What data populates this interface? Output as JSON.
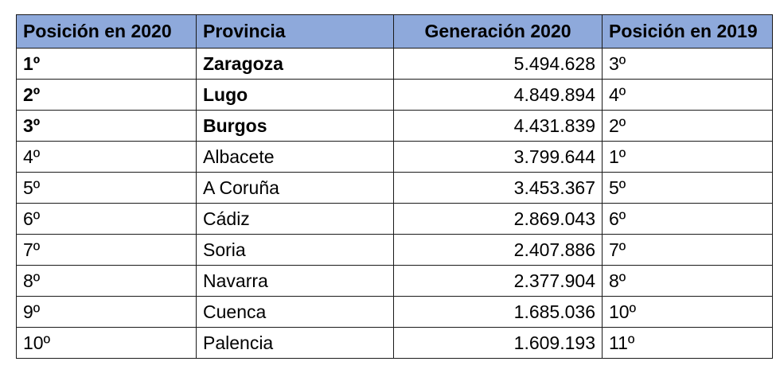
{
  "header_color": "#8EA9DB",
  "table": {
    "headers": [
      "Posición en 2020",
      "Provincia",
      "Generación 2020",
      "Posición en 2019"
    ],
    "rows": [
      {
        "pos2020": "1º",
        "provincia": "Zaragoza",
        "generacion": "5.494.628",
        "pos2019": "3º",
        "bold": true
      },
      {
        "pos2020": "2º",
        "provincia": "Lugo",
        "generacion": "4.849.894",
        "pos2019": "4º",
        "bold": true
      },
      {
        "pos2020": "3º",
        "provincia": "Burgos",
        "generacion": "4.431.839",
        "pos2019": "2º",
        "bold": true
      },
      {
        "pos2020": "4º",
        "provincia": "Albacete",
        "generacion": "3.799.644",
        "pos2019": "1º",
        "bold": false
      },
      {
        "pos2020": "5º",
        "provincia": "A Coruña",
        "generacion": "3.453.367",
        "pos2019": "5º",
        "bold": false
      },
      {
        "pos2020": "6º",
        "provincia": "Cádiz",
        "generacion": "2.869.043",
        "pos2019": "6º",
        "bold": false
      },
      {
        "pos2020": "7º",
        "provincia": "Soria",
        "generacion": "2.407.886",
        "pos2019": "7º",
        "bold": false
      },
      {
        "pos2020": "8º",
        "provincia": "Navarra",
        "generacion": "2.377.904",
        "pos2019": "8º",
        "bold": false
      },
      {
        "pos2020": "9º",
        "provincia": "Cuenca",
        "generacion": "1.685.036",
        "pos2019": "10º",
        "bold": false
      },
      {
        "pos2020": "10º",
        "provincia": "Palencia",
        "generacion": "1.609.193",
        "pos2019": "11º",
        "bold": false
      }
    ]
  }
}
